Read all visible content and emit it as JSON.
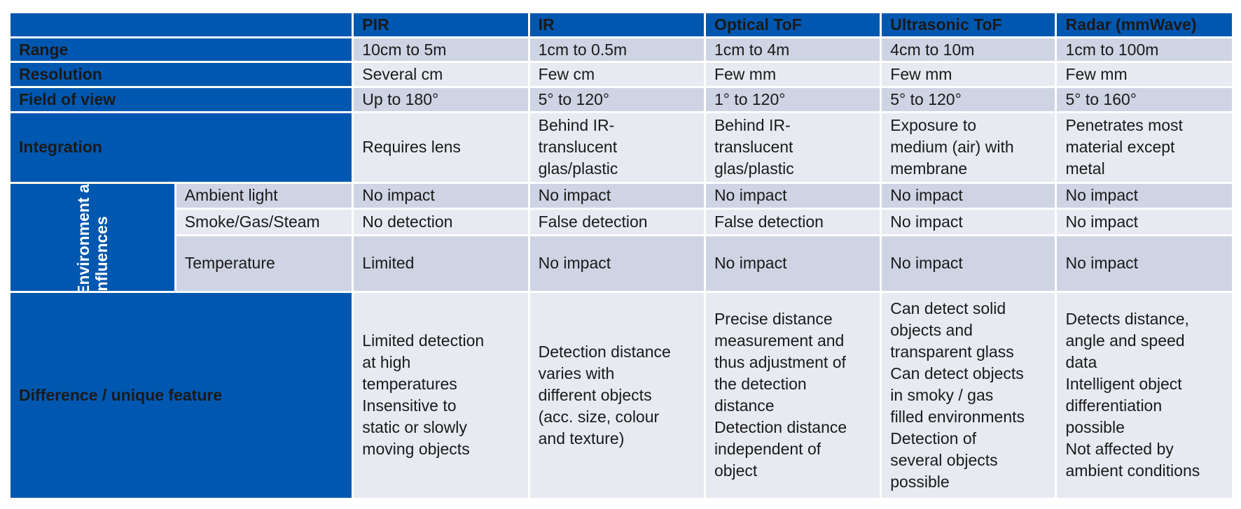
{
  "header": {
    "columns": [
      "PIR",
      "IR",
      "Optical ToF",
      "Ultrasonic ToF",
      "Radar (mmWave)"
    ]
  },
  "rows": {
    "range": {
      "label": "Range",
      "cells": [
        "10cm to 5m",
        "1cm to 0.5m",
        "1cm to 4m",
        "4cm to 10m",
        "1cm to 100m"
      ]
    },
    "resolution": {
      "label": "Resolution",
      "cells": [
        "Several cm",
        "Few cm",
        "Few mm",
        "Few mm",
        "Few mm"
      ]
    },
    "fov": {
      "label": "Field of view",
      "cells": [
        "Up to 180°",
        "5° to 120°",
        "1° to 120°",
        "5° to 120°",
        "5° to 160°"
      ]
    },
    "integration": {
      "label": "Integration",
      "cells": [
        "Requires lens",
        "Behind IR-\ntranslucent\nglas/plastic",
        "Behind IR-\ntranslucent\nglas/plastic",
        "Exposure to\nmedium (air) with\nmembrane",
        "Penetrates most\nmaterial except\nmetal"
      ]
    }
  },
  "environmental": {
    "group_label": "Environment al influences",
    "ambient": {
      "label": "Ambient light",
      "cells": [
        "No impact",
        "No impact",
        "No impact",
        "No impact",
        "No impact"
      ]
    },
    "smoke": {
      "label": "Smoke/Gas/Steam",
      "cells": [
        "No detection",
        "False detection",
        "False detection",
        "No impact",
        "No impact"
      ]
    },
    "temperature": {
      "label": "Temperature",
      "cells": [
        "Limited",
        "No impact",
        "No impact",
        "No impact",
        "No impact"
      ]
    }
  },
  "difference": {
    "label": "Difference / unique feature",
    "cells": [
      "Limited detection\nat high\ntemperatures\nInsensitive to\nstatic or slowly\nmoving objects",
      "Detection distance\nvaries with\ndifferent objects\n(acc. size, colour\nand texture)",
      "Precise distance\nmeasurement and\nthus adjustment of\nthe detection\ndistance\nDetection distance\nindependent of\nobject",
      "Can detect solid\nobjects and\ntransparent glass\nCan detect objects\nin smoky / gas\nfilled environments\nDetection of\nseveral objects\npossible",
      "Detects distance,\nangle and speed\ndata\nIntelligent object\ndifferentiation\npossible\nNot affected by\nambient conditions"
    ]
  },
  "colors": {
    "header_blue": "#0057b0",
    "row_dark": "#cfd4e4",
    "row_light": "#e8eaf1"
  }
}
